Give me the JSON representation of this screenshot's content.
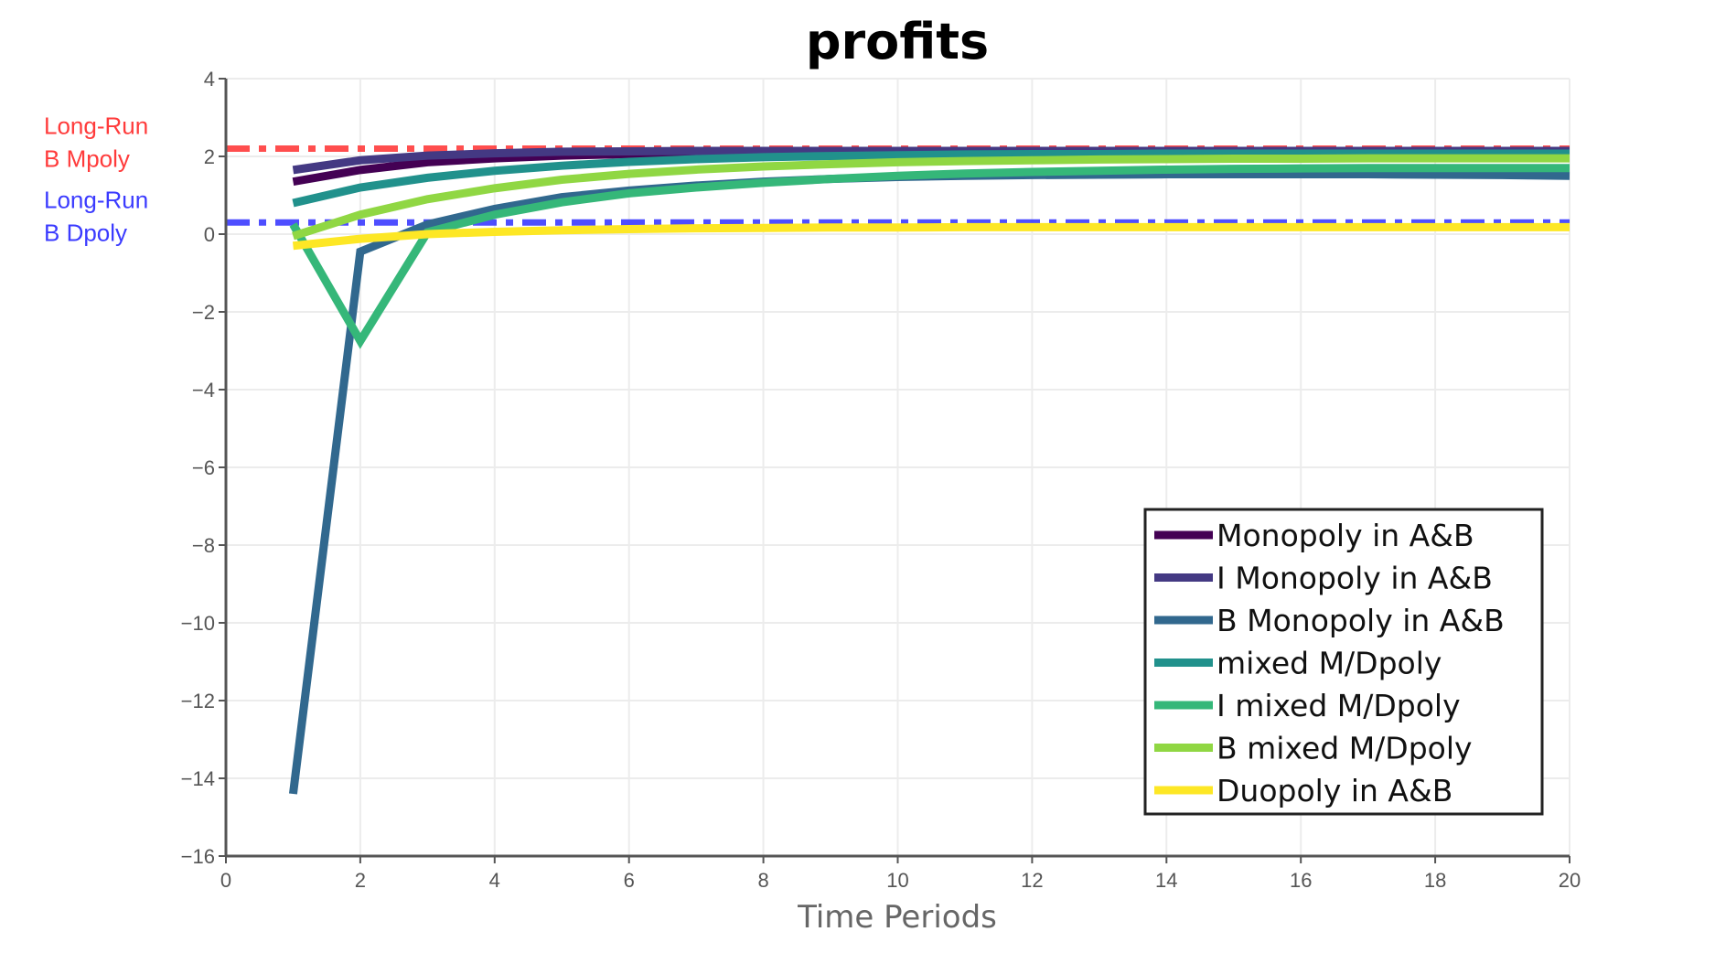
{
  "chart_data": {
    "type": "line",
    "title": "profits",
    "xlabel": "Time Periods",
    "ylabel": "",
    "xlim": [
      0,
      20
    ],
    "ylim": [
      -16,
      4
    ],
    "xticks": [
      0,
      2,
      4,
      6,
      8,
      10,
      12,
      14,
      16,
      18,
      20
    ],
    "yticks": [
      4,
      2,
      0,
      -2,
      -4,
      -6,
      -8,
      -10,
      -12,
      -14,
      -16
    ],
    "ytick_labels": [
      "4",
      "2",
      "0",
      "−2",
      "−4",
      "−6",
      "−8",
      "−10",
      "−12",
      "−14",
      "−16"
    ],
    "grid": true,
    "legend_position": "lower-right",
    "x": [
      1,
      2,
      3,
      4,
      5,
      6,
      7,
      8,
      9,
      10,
      11,
      12,
      13,
      14,
      15,
      16,
      17,
      18,
      19,
      20
    ],
    "series": [
      {
        "name": "Monopoly in A&B",
        "color": "#440154",
        "values": [
          1.35,
          1.65,
          1.85,
          1.95,
          2.02,
          2.06,
          2.08,
          2.09,
          2.1,
          2.1,
          2.1,
          2.1,
          2.1,
          2.1,
          2.1,
          2.1,
          2.1,
          2.1,
          2.1,
          2.1
        ]
      },
      {
        "name": "I Monopoly in A&B",
        "color": "#443983",
        "values": [
          1.65,
          1.9,
          2.02,
          2.08,
          2.12,
          2.13,
          2.14,
          2.14,
          2.14,
          2.14,
          2.14,
          2.14,
          2.14,
          2.14,
          2.14,
          2.14,
          2.14,
          2.14,
          2.14,
          2.14
        ]
      },
      {
        "name": "B Monopoly in A&B",
        "color": "#31688e",
        "values": [
          -14.4,
          -0.45,
          0.25,
          0.65,
          0.95,
          1.12,
          1.25,
          1.35,
          1.42,
          1.47,
          1.5,
          1.52,
          1.53,
          1.54,
          1.54,
          1.54,
          1.54,
          1.53,
          1.52,
          1.5
        ]
      },
      {
        "name": "mixed M/Dpoly",
        "color": "#21918c",
        "values": [
          0.8,
          1.2,
          1.45,
          1.63,
          1.76,
          1.86,
          1.93,
          1.98,
          2.01,
          2.03,
          2.05,
          2.06,
          2.06,
          2.07,
          2.07,
          2.07,
          2.07,
          2.07,
          2.07,
          2.07
        ]
      },
      {
        "name": "I mixed M/Dpoly",
        "color": "#35b779",
        "values": [
          0.25,
          -2.75,
          0.05,
          0.5,
          0.82,
          1.05,
          1.2,
          1.32,
          1.42,
          1.5,
          1.56,
          1.6,
          1.63,
          1.66,
          1.68,
          1.69,
          1.7,
          1.7,
          1.7,
          1.7
        ]
      },
      {
        "name": "B mixed M/Dpoly",
        "color": "#90d743",
        "values": [
          -0.05,
          0.5,
          0.9,
          1.18,
          1.4,
          1.55,
          1.66,
          1.74,
          1.8,
          1.85,
          1.88,
          1.9,
          1.92,
          1.93,
          1.94,
          1.94,
          1.95,
          1.95,
          1.95,
          1.95
        ]
      },
      {
        "name": "Duopoly in A&B",
        "color": "#fde725",
        "values": [
          -0.3,
          -0.12,
          0.0,
          0.06,
          0.1,
          0.13,
          0.15,
          0.16,
          0.17,
          0.17,
          0.18,
          0.18,
          0.18,
          0.18,
          0.18,
          0.18,
          0.18,
          0.18,
          0.18,
          0.18
        ]
      }
    ],
    "reference_lines": [
      {
        "label_line1": "Long-Run",
        "label_line2": "B Mpoly",
        "y": 2.2,
        "color": "#ff3b3b"
      },
      {
        "label_line1": "Long-Run",
        "label_line2": "B Dpoly",
        "y": 0.3,
        "color": "#3b3bff"
      }
    ]
  }
}
